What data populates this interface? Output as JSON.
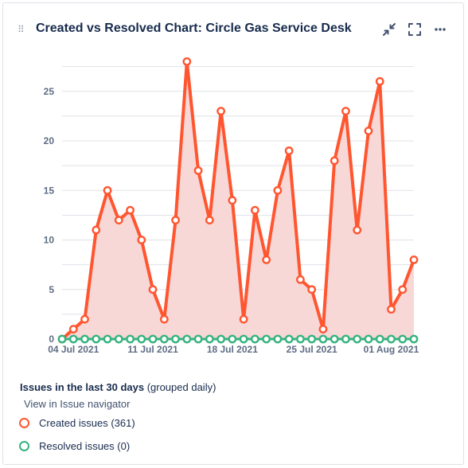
{
  "header": {
    "title": "Created vs Resolved Chart: Circle Gas Service Desk",
    "drag_handle": "⠿",
    "icons": [
      "collapse-icon",
      "fullscreen-icon",
      "more-icon"
    ]
  },
  "legend": {
    "heading_bold": "Issues in the last 30 days",
    "heading_rest": " (grouped daily)",
    "nav_link": "View in Issue navigator",
    "created_label": "Created issues (361)",
    "resolved_label": "Resolved issues (0)"
  },
  "colors": {
    "created": "#ff5630",
    "created_fill": "#f8d7d7",
    "resolved": "#36b37e",
    "grid": "#dfe1e6",
    "tick": "#5e6c84"
  },
  "chart_data": {
    "type": "area",
    "x": [
      "03 Jul 2021",
      "04 Jul 2021",
      "05 Jul 2021",
      "06 Jul 2021",
      "07 Jul 2021",
      "08 Jul 2021",
      "09 Jul 2021",
      "10 Jul 2021",
      "11 Jul 2021",
      "12 Jul 2021",
      "13 Jul 2021",
      "14 Jul 2021",
      "15 Jul 2021",
      "16 Jul 2021",
      "17 Jul 2021",
      "18 Jul 2021",
      "19 Jul 2021",
      "20 Jul 2021",
      "21 Jul 2021",
      "22 Jul 2021",
      "23 Jul 2021",
      "24 Jul 2021",
      "25 Jul 2021",
      "26 Jul 2021",
      "27 Jul 2021",
      "28 Jul 2021",
      "29 Jul 2021",
      "30 Jul 2021",
      "31 Jul 2021",
      "01 Aug 2021",
      "02 Aug 2021",
      "03 Aug 2021"
    ],
    "x_tick_labels": [
      "04 Jul 2021",
      "11 Jul 2021",
      "18 Jul 2021",
      "25 Jul 2021",
      "01 Aug 2021"
    ],
    "x_tick_dates": [
      "04 Jul 2021",
      "11 Jul 2021",
      "18 Jul 2021",
      "25 Jul 2021",
      "01 Aug 2021"
    ],
    "y_ticks": [
      0,
      5,
      10,
      15,
      20,
      25
    ],
    "ylim": [
      0,
      28
    ],
    "grid": true,
    "series": [
      {
        "name": "Created issues (361)",
        "values": [
          0,
          1,
          2,
          11,
          15,
          12,
          13,
          10,
          5,
          2,
          12,
          28,
          17,
          12,
          23,
          14,
          2,
          13,
          8,
          15,
          19,
          6,
          5,
          1,
          18,
          23,
          11,
          21,
          26,
          3,
          5,
          8
        ]
      },
      {
        "name": "Resolved issues (0)",
        "values": [
          0,
          0,
          0,
          0,
          0,
          0,
          0,
          0,
          0,
          0,
          0,
          0,
          0,
          0,
          0,
          0,
          0,
          0,
          0,
          0,
          0,
          0,
          0,
          0,
          0,
          0,
          0,
          0,
          0,
          0,
          0,
          0
        ]
      }
    ]
  }
}
